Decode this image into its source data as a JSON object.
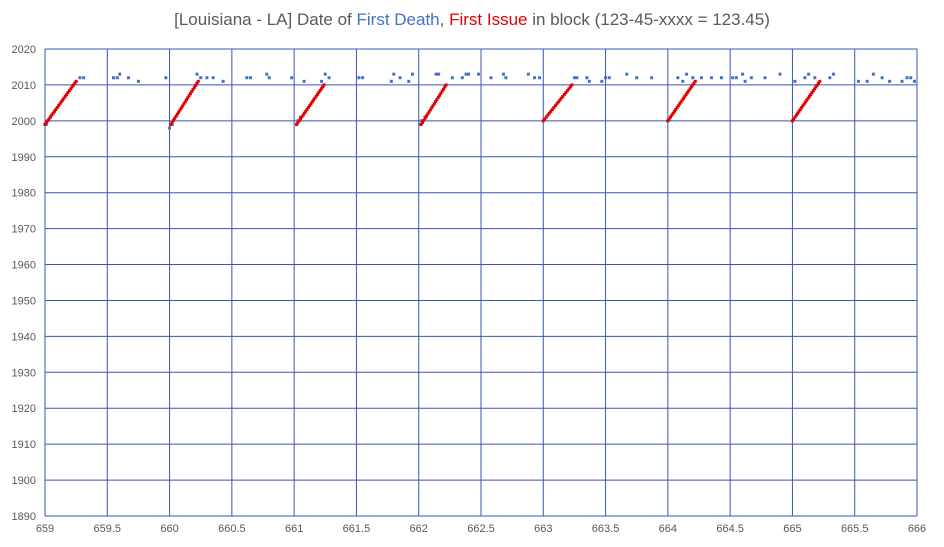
{
  "chart_data": {
    "type": "scatter",
    "title": {
      "part1": "[Louisiana - LA] Date of ",
      "part2": "First Death",
      "part3": ", ",
      "part4": "First Issue",
      "part5": " in block (123-45-xxxx = 123.45)"
    },
    "colors": {
      "first_death": "#4472c4",
      "first_issue": "#e00000",
      "grid": "#3a55b4"
    },
    "xlim": [
      659,
      666
    ],
    "ylim": [
      1890,
      2020
    ],
    "x_ticks": [
      "659",
      "659.5",
      "660",
      "660.5",
      "661",
      "661.5",
      "662",
      "662.5",
      "663",
      "663.5",
      "664",
      "664.5",
      "665",
      "665.5",
      "666"
    ],
    "y_ticks": [
      "1890",
      "1900",
      "1910",
      "1920",
      "1930",
      "1940",
      "1950",
      "1960",
      "1970",
      "1980",
      "1990",
      "2000",
      "2010",
      "2020"
    ],
    "grid": true,
    "legend": "none",
    "series": [
      {
        "key": "first_death",
        "points": [
          [
            659.01,
            1999
          ],
          [
            659.25,
            2011
          ],
          [
            659.28,
            2012
          ],
          [
            659.31,
            2012
          ],
          [
            659.55,
            2012
          ],
          [
            659.58,
            2012
          ],
          [
            659.6,
            2013
          ],
          [
            659.67,
            2012
          ],
          [
            659.75,
            2011
          ],
          [
            659.97,
            2012
          ],
          [
            660.0,
            1998
          ],
          [
            660.02,
            1999
          ],
          [
            660.22,
            2013
          ],
          [
            660.25,
            2012
          ],
          [
            660.3,
            2012
          ],
          [
            660.35,
            2012
          ],
          [
            660.43,
            2011
          ],
          [
            660.62,
            2012
          ],
          [
            660.65,
            2012
          ],
          [
            660.78,
            2013
          ],
          [
            660.8,
            2012
          ],
          [
            660.98,
            2012
          ],
          [
            661.02,
            1999
          ],
          [
            661.03,
            2000
          ],
          [
            661.05,
            2001
          ],
          [
            661.08,
            2011
          ],
          [
            661.22,
            2011
          ],
          [
            661.25,
            2013
          ],
          [
            661.28,
            2012
          ],
          [
            661.52,
            2012
          ],
          [
            661.55,
            2012
          ],
          [
            661.78,
            2011
          ],
          [
            661.8,
            2013
          ],
          [
            661.85,
            2012
          ],
          [
            661.92,
            2011
          ],
          [
            661.95,
            2013
          ],
          [
            662.01,
            1999
          ],
          [
            662.02,
            2000
          ],
          [
            662.05,
            2001
          ],
          [
            662.14,
            2013
          ],
          [
            662.16,
            2013
          ],
          [
            662.27,
            2012
          ],
          [
            662.35,
            2012
          ],
          [
            662.38,
            2013
          ],
          [
            662.4,
            2013
          ],
          [
            662.48,
            2013
          ],
          [
            662.58,
            2012
          ],
          [
            662.68,
            2013
          ],
          [
            662.7,
            2012
          ],
          [
            662.88,
            2013
          ],
          [
            662.93,
            2012
          ],
          [
            662.97,
            2012
          ],
          [
            663.25,
            2012
          ],
          [
            663.27,
            2012
          ],
          [
            663.35,
            2012
          ],
          [
            663.37,
            2011
          ],
          [
            663.47,
            2011
          ],
          [
            663.5,
            2012
          ],
          [
            663.53,
            2012
          ],
          [
            663.67,
            2013
          ],
          [
            663.75,
            2012
          ],
          [
            663.87,
            2012
          ],
          [
            664.08,
            2012
          ],
          [
            664.12,
            2011
          ],
          [
            664.15,
            2013
          ],
          [
            664.2,
            2012
          ],
          [
            664.27,
            2012
          ],
          [
            664.35,
            2012
          ],
          [
            664.43,
            2012
          ],
          [
            664.52,
            2012
          ],
          [
            664.55,
            2012
          ],
          [
            664.6,
            2013
          ],
          [
            664.62,
            2011
          ],
          [
            664.67,
            2012
          ],
          [
            664.78,
            2012
          ],
          [
            664.9,
            2013
          ],
          [
            665.02,
            2011
          ],
          [
            665.1,
            2012
          ],
          [
            665.13,
            2013
          ],
          [
            665.18,
            2012
          ],
          [
            665.3,
            2012
          ],
          [
            665.33,
            2013
          ],
          [
            665.53,
            2011
          ],
          [
            665.6,
            2011
          ],
          [
            665.65,
            2013
          ],
          [
            665.72,
            2012
          ],
          [
            665.78,
            2011
          ],
          [
            665.88,
            2011
          ],
          [
            665.92,
            2012
          ],
          [
            665.95,
            2012
          ],
          [
            665.98,
            2011
          ]
        ]
      },
      {
        "key": "first_issue",
        "runs": [
          {
            "x_start": 659.0,
            "x_end": 659.25,
            "y_start": 1999,
            "y_end": 2011,
            "count": 24
          },
          {
            "x_start": 660.01,
            "x_end": 660.23,
            "y_start": 1999,
            "y_end": 2011,
            "count": 22
          },
          {
            "x_start": 661.02,
            "x_end": 661.24,
            "y_start": 1999,
            "y_end": 2010,
            "count": 22
          },
          {
            "x_start": 662.02,
            "x_end": 662.22,
            "y_start": 1999,
            "y_end": 2010,
            "count": 20
          },
          {
            "x_start": 663.0,
            "x_end": 663.23,
            "y_start": 2000,
            "y_end": 2010,
            "count": 20
          },
          {
            "x_start": 664.0,
            "x_end": 664.22,
            "y_start": 2000,
            "y_end": 2011,
            "count": 22
          },
          {
            "x_start": 665.0,
            "x_end": 665.22,
            "y_start": 2000,
            "y_end": 2011,
            "count": 22
          }
        ]
      }
    ]
  }
}
